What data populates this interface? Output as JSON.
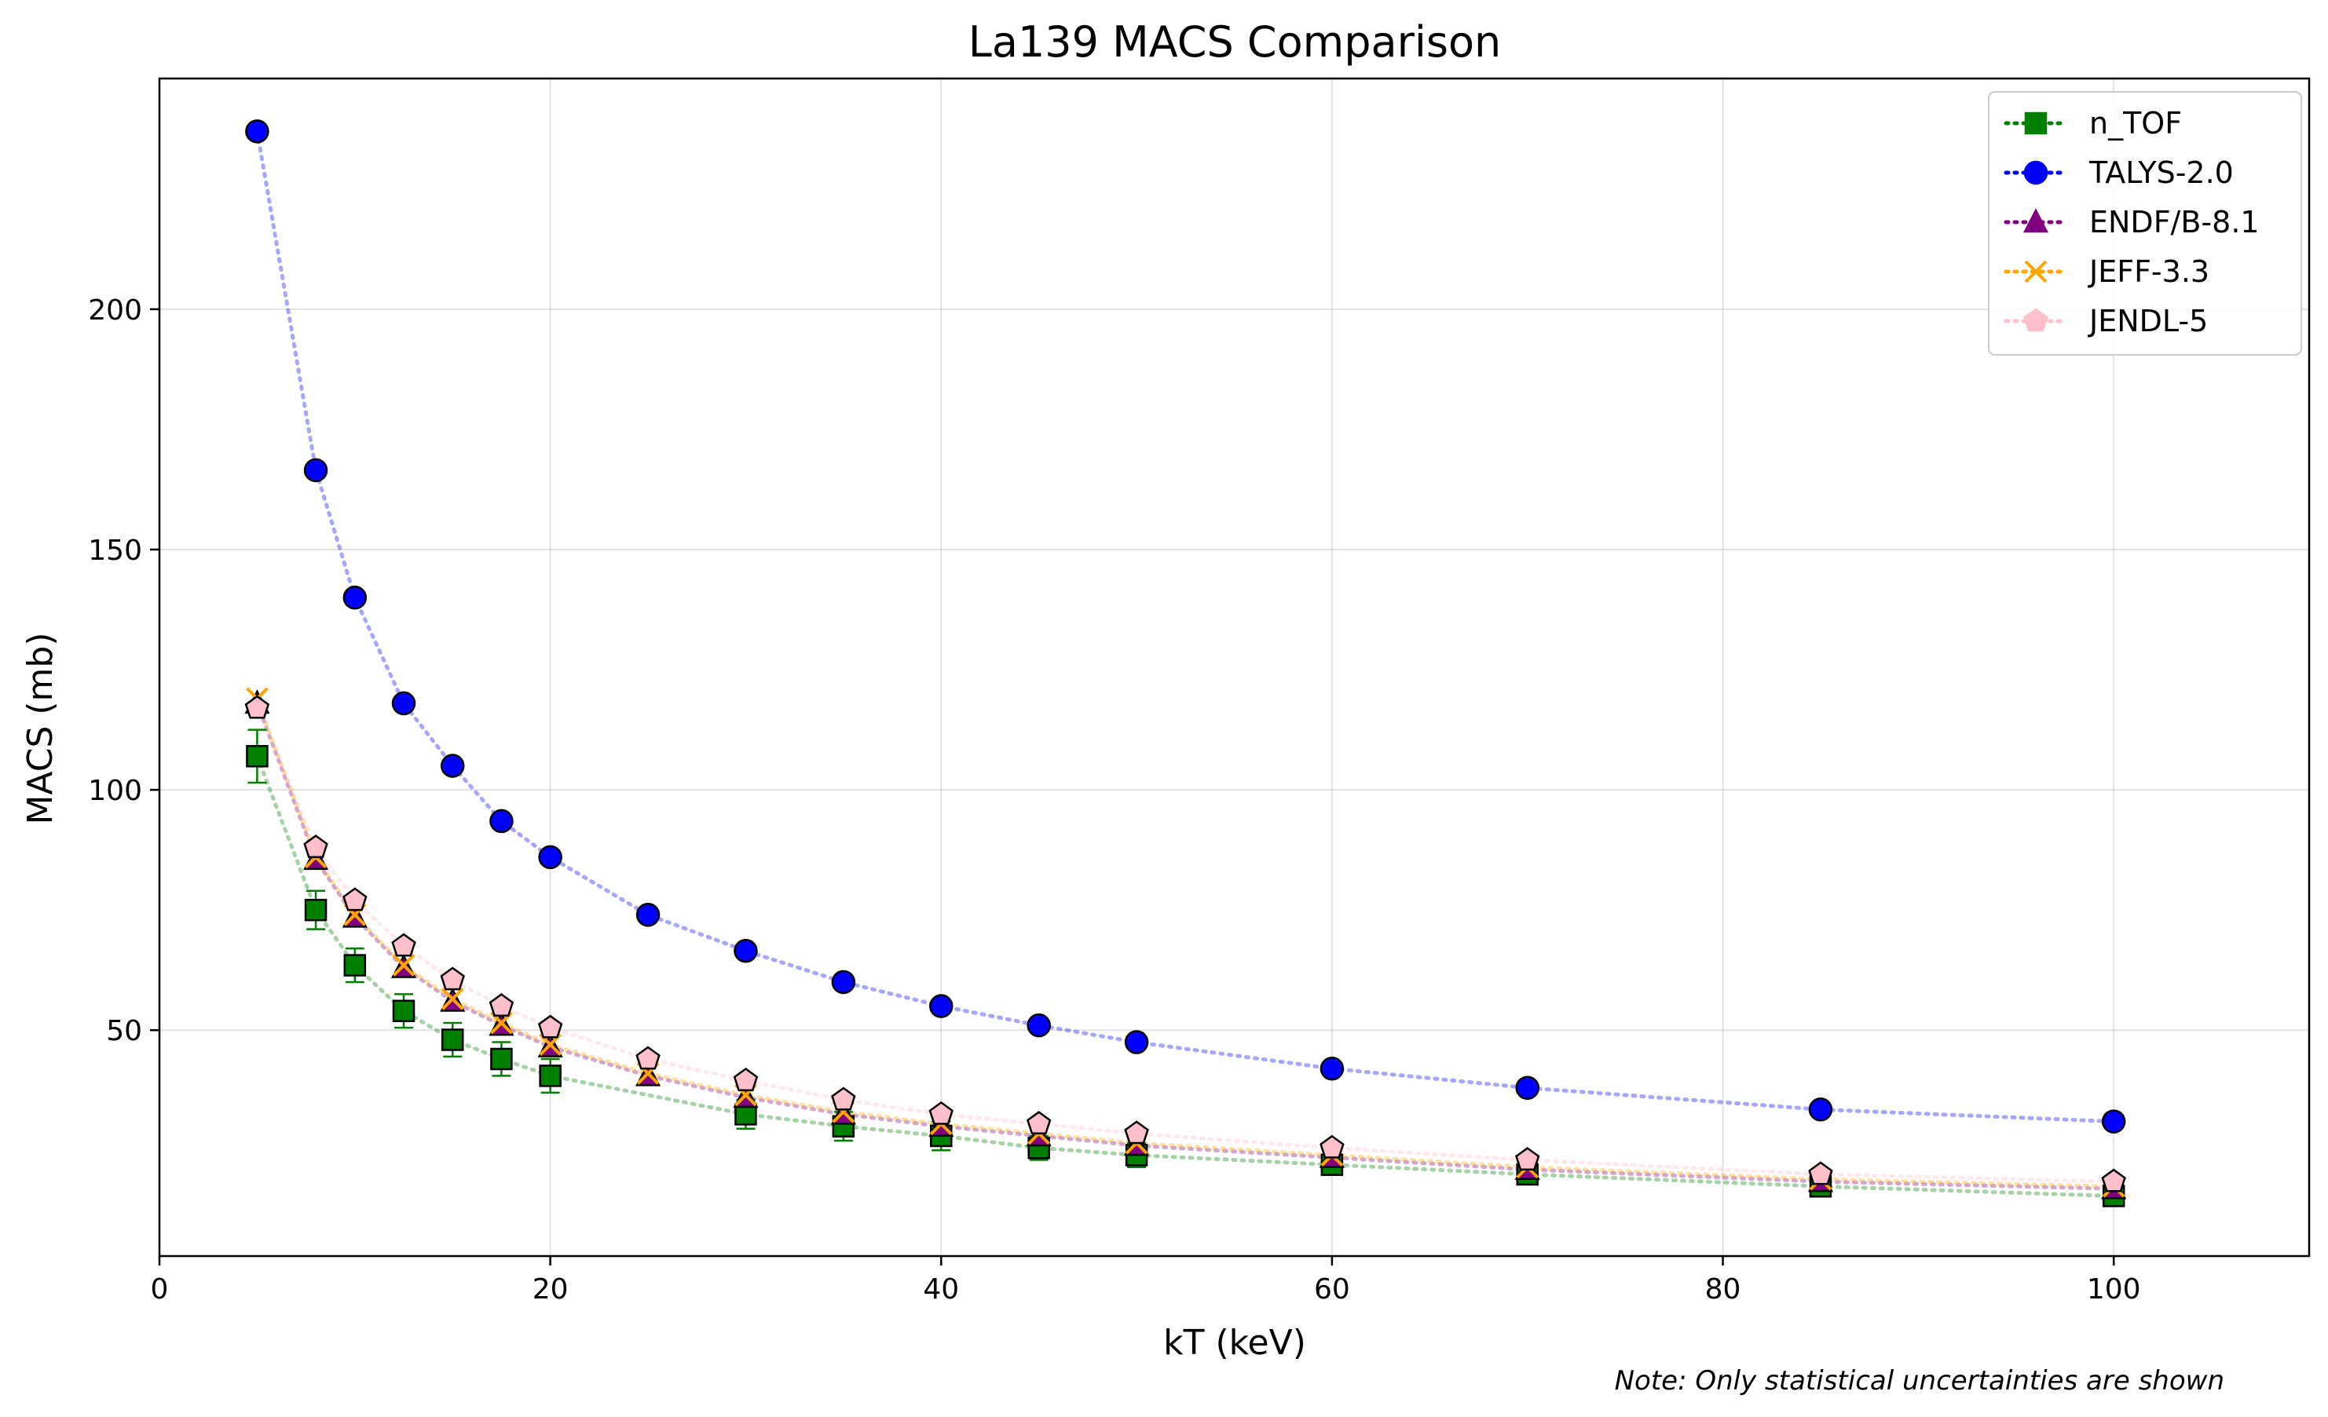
{
  "chart_data": {
    "type": "scatter",
    "title": "La139 MACS Comparison",
    "xlabel": "kT (keV)",
    "ylabel": "MACS (mb)",
    "xlim": [
      0,
      110
    ],
    "ylim": [
      3,
      248
    ],
    "xticks": [
      0,
      20,
      40,
      60,
      80,
      100
    ],
    "yticks": [
      50,
      100,
      150,
      200
    ],
    "grid": true,
    "legend_position": "top-right",
    "note": "Note: Only statistical uncertainties are shown",
    "series": [
      {
        "name": "n_TOF",
        "color": "#008000",
        "marker": "square",
        "x": [
          5,
          8,
          10,
          12.5,
          15,
          17.5,
          20,
          30,
          35,
          40,
          45,
          50,
          60,
          70,
          85,
          100
        ],
        "y": [
          107,
          75,
          63.5,
          54,
          48,
          44,
          40.5,
          32.5,
          30,
          28,
          25.5,
          24,
          22,
          20,
          17.5,
          15.5
        ],
        "yerr": [
          5.5,
          4,
          3.5,
          3.5,
          3.5,
          3.5,
          3.5,
          3,
          3,
          3,
          2.5,
          2.5,
          2,
          2,
          2,
          2
        ]
      },
      {
        "name": "TALYS-2.0",
        "color": "#0000ff",
        "marker": "circle",
        "x": [
          5,
          8,
          10,
          12.5,
          15,
          17.5,
          20,
          25,
          30,
          35,
          40,
          45,
          50,
          60,
          70,
          85,
          100
        ],
        "y": [
          237,
          166.5,
          140,
          118,
          105,
          93.5,
          86,
          74,
          66.5,
          60,
          55,
          51,
          47.5,
          42,
          38,
          33.5,
          31
        ]
      },
      {
        "name": "ENDF/B-8.1",
        "color": "#800080",
        "marker": "triangle",
        "x": [
          5,
          8,
          10,
          12.5,
          15,
          17.5,
          20,
          25,
          30,
          35,
          40,
          45,
          50,
          60,
          70,
          85,
          100
        ],
        "y": [
          118,
          85.5,
          73.5,
          63,
          56,
          51,
          46.5,
          40.5,
          36,
          32.5,
          30,
          28,
          26,
          23.5,
          21,
          18.5,
          17
        ]
      },
      {
        "name": "JEFF-3.3",
        "color": "#ffa500",
        "marker": "x",
        "x": [
          5,
          8,
          10,
          12.5,
          15,
          17.5,
          20,
          25,
          30,
          35,
          40,
          45,
          50,
          60,
          70,
          85,
          100
        ],
        "y": [
          119,
          86,
          74,
          63.5,
          56.5,
          51.5,
          47,
          41,
          36.5,
          33,
          30.5,
          28.5,
          26.5,
          24,
          21.5,
          19,
          17.5
        ]
      },
      {
        "name": "JENDL-5",
        "color": "#ffc0cb",
        "marker": "pentagon",
        "x": [
          5,
          8,
          10,
          12.5,
          15,
          17.5,
          20,
          25,
          30,
          35,
          40,
          45,
          50,
          60,
          70,
          85,
          100
        ],
        "y": [
          117,
          88,
          77,
          67.5,
          60.5,
          55,
          50.5,
          44,
          39.5,
          35.5,
          32.5,
          30.5,
          28.5,
          25.5,
          23,
          20,
          18.5
        ]
      }
    ]
  }
}
